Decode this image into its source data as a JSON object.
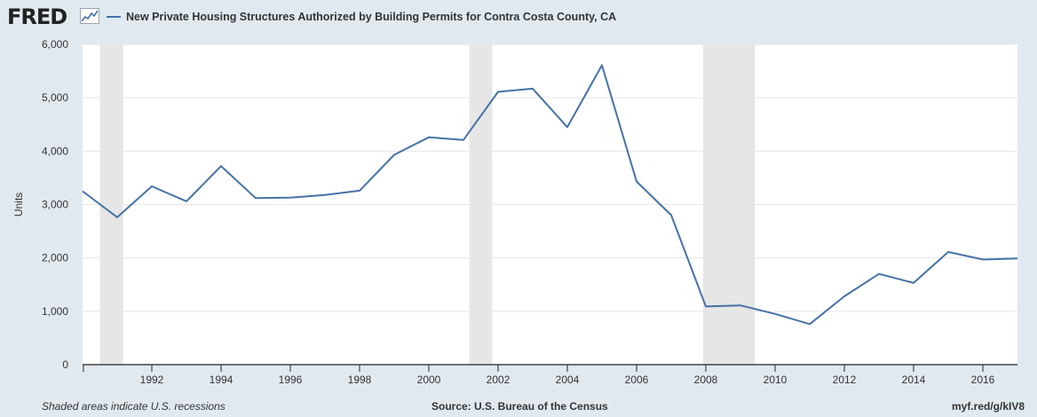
{
  "header": {
    "logo_text": "FRED",
    "logo_icon": "line-graph-icon",
    "legend_label": "New Private Housing Structures Authorized by Building Permits for Contra Costa County, CA"
  },
  "footer": {
    "recession_note": "Shaded areas indicate U.S. recessions",
    "source": "Source: U.S. Bureau of the Census",
    "short_url": "myf.red/g/kIV8"
  },
  "colors": {
    "background": "#e1e9f0",
    "plot_background": "#ffffff",
    "series": "#4572a7",
    "recession": "#e6e6e6"
  },
  "chart_data": {
    "type": "line",
    "title": "New Private Housing Structures Authorized by Building Permits for Contra Costa County, CA",
    "xlabel": "",
    "ylabel": "Units",
    "xlim": [
      1990,
      2017
    ],
    "ylim": [
      0,
      6000
    ],
    "yticks": [
      0,
      1000,
      2000,
      3000,
      4000,
      5000,
      6000
    ],
    "ytick_labels": [
      "0",
      "1,000",
      "2,000",
      "3,000",
      "4,000",
      "5,000",
      "6,000"
    ],
    "xticks": [
      1992,
      1994,
      1996,
      1998,
      2000,
      2002,
      2004,
      2006,
      2008,
      2010,
      2012,
      2014,
      2016
    ],
    "xtick_labels": [
      "1992",
      "1994",
      "1996",
      "1998",
      "2000",
      "2002",
      "2004",
      "2006",
      "2008",
      "2010",
      "2012",
      "2014",
      "2016"
    ],
    "grid": true,
    "legend_position": "top-left",
    "recessions": [
      [
        1990.5,
        1991.17
      ],
      [
        2001.17,
        2001.83
      ],
      [
        2007.92,
        2009.42
      ]
    ],
    "series": [
      {
        "name": "New Private Housing Structures Authorized by Building Permits for Contra Costa County, CA",
        "x": [
          1990,
          1991,
          1992,
          1993,
          1994,
          1995,
          1996,
          1997,
          1998,
          1999,
          2000,
          2001,
          2002,
          2003,
          2004,
          2005,
          2006,
          2007,
          2008,
          2009,
          2010,
          2011,
          2012,
          2013,
          2014,
          2015,
          2016,
          2017
        ],
        "values": [
          3250,
          2760,
          3340,
          3060,
          3720,
          3120,
          3130,
          3180,
          3260,
          3930,
          4260,
          4210,
          5110,
          5170,
          4450,
          5610,
          3430,
          2800,
          1090,
          1110,
          950,
          760,
          1280,
          1700,
          1530,
          2110,
          1970,
          1990
        ]
      }
    ]
  }
}
